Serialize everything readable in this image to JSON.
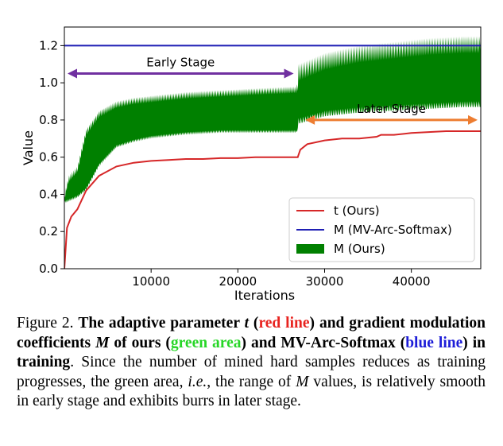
{
  "chart_data": {
    "type": "line",
    "xlabel": "Iterations",
    "ylabel": "Value",
    "xlim": [
      0,
      48000
    ],
    "ylim": [
      0.0,
      1.3
    ],
    "xticks": [
      10000,
      20000,
      30000,
      40000
    ],
    "yticks": [
      0.0,
      0.2,
      0.4,
      0.6,
      0.8,
      1.0,
      1.2
    ],
    "grid": false,
    "legend_position": "lower-right",
    "series": [
      {
        "name": "t (Ours)",
        "kind": "line",
        "color": "#d62728",
        "x": [
          0,
          300,
          800,
          1500,
          2500,
          4000,
          6000,
          8000,
          10000,
          12000,
          14000,
          16000,
          18000,
          20000,
          22000,
          24000,
          26500,
          26900,
          27200,
          28000,
          30000,
          32000,
          34000,
          36000,
          36500,
          38000,
          40000,
          42000,
          44000,
          46000,
          48000
        ],
        "y": [
          0.0,
          0.22,
          0.28,
          0.32,
          0.42,
          0.5,
          0.55,
          0.57,
          0.58,
          0.585,
          0.59,
          0.59,
          0.595,
          0.595,
          0.6,
          0.6,
          0.6,
          0.6,
          0.64,
          0.67,
          0.69,
          0.7,
          0.7,
          0.71,
          0.72,
          0.72,
          0.73,
          0.735,
          0.74,
          0.74,
          0.74
        ]
      },
      {
        "name": "M (MV-Arc-Softmax)",
        "kind": "line",
        "color": "#1f1fb4",
        "x": [
          0,
          48000
        ],
        "y": [
          1.2,
          1.2
        ]
      },
      {
        "name": "M (Ours)",
        "kind": "area",
        "color": "#008000",
        "x": [
          0,
          500,
          1500,
          2500,
          4000,
          6000,
          8000,
          10000,
          14000,
          18000,
          22000,
          26800,
          27000,
          30000,
          34000,
          38000,
          42000,
          46000,
          48000
        ],
        "lower": [
          0.35,
          0.36,
          0.38,
          0.42,
          0.55,
          0.65,
          0.68,
          0.7,
          0.72,
          0.73,
          0.73,
          0.73,
          0.78,
          0.82,
          0.84,
          0.85,
          0.86,
          0.87,
          0.87
        ],
        "upper": [
          0.4,
          0.5,
          0.55,
          0.75,
          0.85,
          0.9,
          0.92,
          0.93,
          0.95,
          0.96,
          0.97,
          0.98,
          1.1,
          1.16,
          1.2,
          1.22,
          1.24,
          1.25,
          1.25
        ]
      }
    ],
    "annotations": [
      {
        "text": "Early Stage",
        "x_from": 0,
        "x_to": 26800,
        "y": 1.05,
        "color": "#7030a0"
      },
      {
        "text": "Later Stage",
        "x_from": 27400,
        "x_to": 48000,
        "y": 0.8,
        "color": "#ed7d31"
      }
    ]
  },
  "caption": {
    "prefix": "Figure 2. ",
    "b1": "The adaptive parameter ",
    "var_t": "t",
    "b2": " (",
    "red_text": "red line",
    "b3": ") and gradient modulation coefficients ",
    "var_M": "M",
    "b4": " of ours (",
    "green_text": "green area",
    "b5": ") and MV-Arc-Softmax (",
    "blue_text": "blue line",
    "b6": ") in training",
    "p1": ". Since the number of mined hard samples reduces as training progresses, the green area, ",
    "ie": "i.e.",
    "p2": ", the range of ",
    "var_M2": "M",
    "p3": " values, is relatively smooth in early stage and exhibits burrs in later stage."
  }
}
